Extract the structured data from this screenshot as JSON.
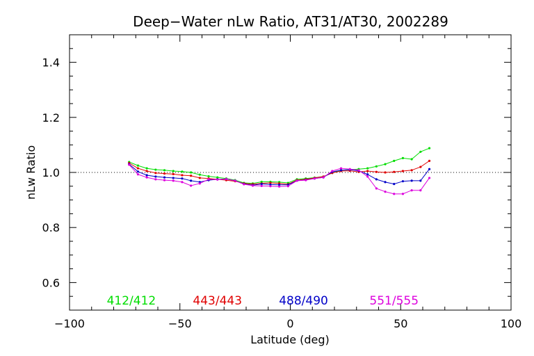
{
  "chart_data": {
    "type": "line",
    "title": "Deep−Water nLw Ratio, AT31/AT30, 2002289",
    "xlabel": "Latitude (deg)",
    "ylabel": "nLw Ratio",
    "xlim": [
      -100,
      100
    ],
    "ylim": [
      0.5,
      1.5
    ],
    "xticks": [
      -100,
      -50,
      0,
      50,
      100
    ],
    "xtick_labels": [
      "−100",
      "−50",
      "0",
      "50",
      "100"
    ],
    "yticks": [
      0.6,
      0.8,
      1.0,
      1.2,
      1.4
    ],
    "ytick_labels": [
      "0.6",
      "0.8",
      "1.0",
      "1.2",
      "1.4"
    ],
    "reference_line": 1.0,
    "grid": false,
    "x": [
      -73,
      -69,
      -65,
      -61,
      -57,
      -53,
      -49,
      -45,
      -41,
      -37,
      -33,
      -29,
      -25,
      -21,
      -17,
      -13,
      -9,
      -5,
      -1,
      3,
      7,
      11,
      15,
      19,
      23,
      27,
      31,
      35,
      39,
      43,
      47,
      51,
      55,
      59,
      63
    ],
    "series": [
      {
        "name": "412/412",
        "color": "#00dd00",
        "values": [
          1.038,
          1.025,
          1.015,
          1.01,
          1.008,
          1.005,
          1.003,
          1.0,
          0.992,
          0.986,
          0.982,
          0.978,
          0.972,
          0.962,
          0.96,
          0.966,
          0.966,
          0.965,
          0.962,
          0.975,
          0.978,
          0.981,
          0.985,
          0.998,
          1.008,
          1.01,
          1.012,
          1.015,
          1.022,
          1.03,
          1.042,
          1.052,
          1.048,
          1.075,
          1.088
        ]
      },
      {
        "name": "443/443",
        "color": "#e00000",
        "values": [
          1.034,
          1.015,
          1.005,
          0.998,
          0.996,
          0.994,
          0.99,
          0.988,
          0.98,
          0.978,
          0.975,
          0.972,
          0.968,
          0.96,
          0.957,
          0.96,
          0.962,
          0.96,
          0.957,
          0.972,
          0.975,
          0.98,
          0.985,
          0.998,
          1.005,
          1.006,
          1.002,
          1.005,
          1.002,
          1.0,
          1.002,
          1.005,
          1.008,
          1.02,
          1.042
        ]
      },
      {
        "name": "488/490",
        "color": "#0000c8",
        "values": [
          1.03,
          1.003,
          0.99,
          0.985,
          0.982,
          0.98,
          0.978,
          0.97,
          0.965,
          0.972,
          0.975,
          0.976,
          0.97,
          0.958,
          0.954,
          0.958,
          0.956,
          0.955,
          0.955,
          0.97,
          0.973,
          0.978,
          0.982,
          1.002,
          1.008,
          1.01,
          1.006,
          0.993,
          0.975,
          0.965,
          0.958,
          0.968,
          0.97,
          0.97,
          1.012
        ]
      },
      {
        "name": "551/555",
        "color": "#dd00dd",
        "values": [
          1.028,
          0.993,
          0.982,
          0.975,
          0.972,
          0.97,
          0.965,
          0.952,
          0.96,
          0.975,
          0.974,
          0.976,
          0.97,
          0.957,
          0.952,
          0.951,
          0.95,
          0.949,
          0.95,
          0.97,
          0.972,
          0.978,
          0.982,
          1.005,
          1.015,
          1.012,
          1.008,
          0.985,
          0.942,
          0.93,
          0.922,
          0.922,
          0.935,
          0.935,
          0.98
        ]
      }
    ],
    "legend": [
      "412/412",
      "443/443",
      "488/490",
      "551/555"
    ],
    "legend_placement": "bottom"
  }
}
